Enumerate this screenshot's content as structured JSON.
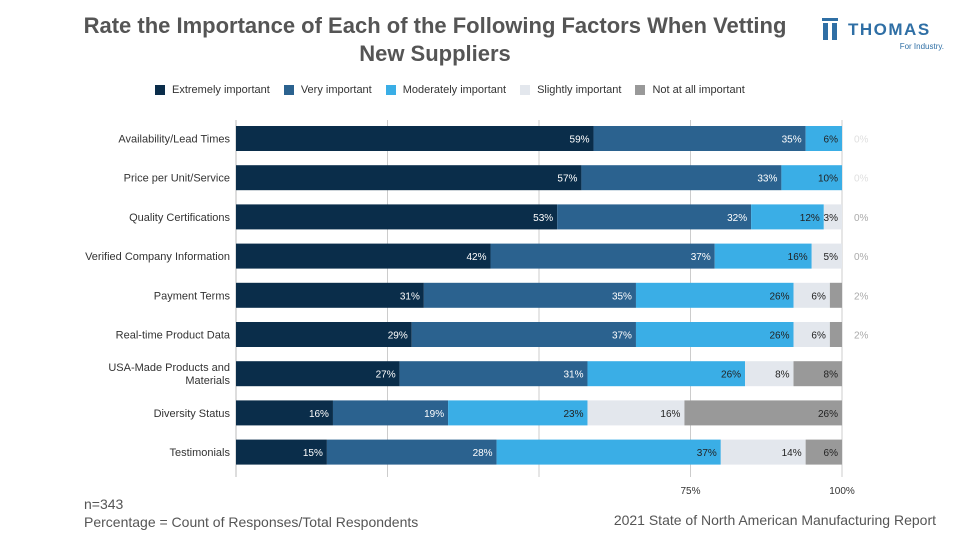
{
  "title": "Rate the Importance of Each of the Following Factors When Vetting New Suppliers",
  "brand": {
    "name": "THOMAS",
    "tagline": "For Industry.",
    "logo_icon": "thomas-logo-icon"
  },
  "footnotes": {
    "n": "n=343",
    "definition": "Percentage = Count of Responses/Total Respondents"
  },
  "source": "2021 State of North American Manufacturing Report",
  "chart_data": {
    "type": "bar",
    "orientation": "horizontal",
    "stacked": true,
    "title": "Rate the Importance of Each of the Following Factors When Vetting New Suppliers",
    "categories": [
      "Availability/Lead Times",
      "Price per Unit/Service",
      "Quality Certifications",
      "Verified Company Information",
      "Payment Terms",
      "Real-time Product Data",
      "USA-Made Products and Materials",
      "Diversity Status",
      "Testimonials"
    ],
    "series": [
      {
        "name": "Extremely important",
        "color": "#0a2d4a",
        "values": [
          59,
          57,
          53,
          42,
          31,
          29,
          27,
          16,
          15
        ]
      },
      {
        "name": "Very important",
        "color": "#2b628f",
        "values": [
          35,
          33,
          32,
          37,
          35,
          37,
          31,
          19,
          28
        ]
      },
      {
        "name": "Moderately important",
        "color": "#3aaee6",
        "values": [
          6,
          10,
          12,
          16,
          26,
          26,
          26,
          23,
          37
        ]
      },
      {
        "name": "Slightly important",
        "color": "#e3e7ed",
        "values": [
          0,
          0,
          3,
          5,
          6,
          6,
          8,
          16,
          14
        ]
      },
      {
        "name": "Not at all important",
        "color": "#999999",
        "values": [
          0,
          0,
          0,
          0,
          2,
          2,
          8,
          26,
          6
        ]
      }
    ],
    "x_ticks": [
      {
        "value": 75,
        "label": "75%"
      },
      {
        "value": 100,
        "label": "100%"
      }
    ],
    "xlim": [
      0,
      100
    ],
    "grid": true,
    "legend_position": "top"
  }
}
